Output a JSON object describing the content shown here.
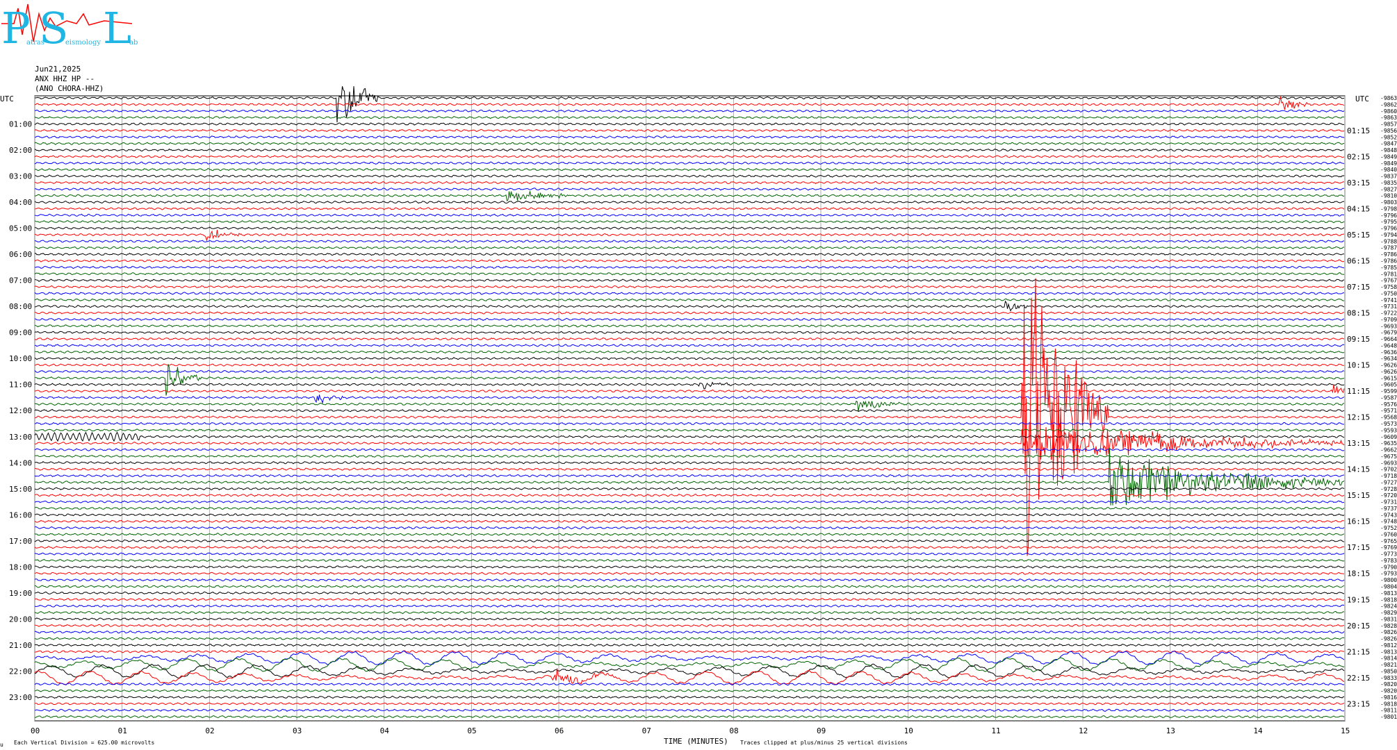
{
  "logo": {
    "big_letters": [
      "P",
      "S",
      "L"
    ],
    "small_words": [
      "atras",
      "eismology",
      "ab"
    ],
    "colors": {
      "letters": "#1fb6e4",
      "wave": "#ff0000"
    }
  },
  "header": {
    "date": "Jun21,2025",
    "station": "ANX HHZ HP --",
    "location": "(ANO CHORA-HHZ)"
  },
  "utc_left": "UTC",
  "utc_right": "UTC",
  "footer": {
    "vertical_division": "Each Vertical Division =  625.00 microvolts",
    "xlabel": "TIME (MINUTES)",
    "clip_note": "Traces clipped at plus/minus 25 vertical divisions",
    "corner_mark": "u"
  },
  "chart_data": {
    "type": "line",
    "xlabel": "TIME (MINUTES)",
    "x_ticks": [
      "00",
      "01",
      "02",
      "03",
      "04",
      "05",
      "06",
      "07",
      "08",
      "09",
      "10",
      "11",
      "12",
      "13",
      "14",
      "15"
    ],
    "xlim": [
      0,
      15
    ],
    "trace_minutes": 15,
    "traces_per_hour": 4,
    "trace_colors": [
      "#000000",
      "#ff0000",
      "#0000ff",
      "#006400"
    ],
    "left_hour_labels": [
      "01:00",
      "02:00",
      "03:00",
      "04:00",
      "05:00",
      "06:00",
      "07:00",
      "08:00",
      "09:00",
      "10:00",
      "11:00",
      "12:00",
      "13:00",
      "14:00",
      "15:00",
      "16:00",
      "17:00",
      "18:00",
      "19:00",
      "20:00",
      "21:00",
      "22:00",
      "23:00"
    ],
    "right_hour_labels": [
      "01:15",
      "02:15",
      "03:15",
      "04:15",
      "05:15",
      "06:15",
      "07:15",
      "08:15",
      "09:15",
      "10:15",
      "11:15",
      "12:15",
      "13:15",
      "14:15",
      "15:15",
      "16:15",
      "17:15",
      "18:15",
      "19:15",
      "20:15",
      "21:15",
      "22:15",
      "23:15"
    ],
    "trace_offsets": [
      "-9863",
      "-9862",
      "-9860",
      "-9863",
      "-9857",
      "-9856",
      "-9852",
      "-9847",
      "-9848",
      "-9849",
      "-9849",
      "-9840",
      "-9837",
      "-9835",
      "-9827",
      "-9810",
      "-9803",
      "-9798",
      "-9796",
      "-9795",
      "-9796",
      "-9794",
      "-9788",
      "-9787",
      "-9786",
      "-9786",
      "-9785",
      "-9781",
      "-9767",
      "-9758",
      "-9750",
      "-9741",
      "-9731",
      "-9722",
      "-9709",
      "-9693",
      "-9679",
      "-9664",
      "-9648",
      "-9636",
      "-9634",
      "-9626",
      "-9626",
      "-9615",
      "-9605",
      "-9599",
      "-9587",
      "-9576",
      "-9571",
      "-9568",
      "-9573",
      "-9593",
      "-9609",
      "-9635",
      "-9662",
      "-9675",
      "-9693",
      "-9702",
      "-9718",
      "-9727",
      "-9728",
      "-9720",
      "-9731",
      "-9737",
      "-9743",
      "-9748",
      "-9752",
      "-9760",
      "-9765",
      "-9769",
      "-9773",
      "-9783",
      "-9790",
      "-9793",
      "-9800",
      "-9804",
      "-9813",
      "-9818",
      "-9824",
      "-9829",
      "-9831",
      "-9828",
      "-9826",
      "-9826",
      "-9812",
      "-9813",
      "-9814",
      "-9821",
      "-9850",
      "-9833",
      "-9820",
      "-9820",
      "-9816",
      "-9818",
      "-9811",
      "-9801"
    ],
    "events": [
      {
        "row": 0,
        "minute": 3.45,
        "duration": 0.5,
        "amplitude": 5,
        "label": "event"
      },
      {
        "row": 1,
        "minute": 14.25,
        "duration": 0.35,
        "amplitude": 1.2
      },
      {
        "row": 15,
        "minute": 5.4,
        "duration": 0.8,
        "amplitude": 1
      },
      {
        "row": 21,
        "minute": 1.95,
        "duration": 0.4,
        "amplitude": 1
      },
      {
        "row": 32,
        "minute": 11.1,
        "duration": 0.3,
        "amplitude": 1.3
      },
      {
        "row": 43,
        "minute": 1.5,
        "duration": 0.4,
        "amplitude": 2.5
      },
      {
        "row": 44,
        "minute": 7.6,
        "duration": 0.4,
        "amplitude": 1.2
      },
      {
        "row": 45,
        "minute": 14.85,
        "duration": 0.2,
        "amplitude": 1.5
      },
      {
        "row": 46,
        "minute": 3.2,
        "duration": 0.4,
        "amplitude": 1
      },
      {
        "row": 47,
        "minute": 9.4,
        "duration": 0.6,
        "amplitude": 1
      },
      {
        "row": 49,
        "minute": 11.3,
        "duration": 1.0,
        "amplitude": 28,
        "label": "large-event"
      },
      {
        "row": 53,
        "minute": 11.3,
        "duration": 3.7,
        "amplitude": 3,
        "label": "coda"
      },
      {
        "row": 59,
        "minute": 12.3,
        "duration": 2.7,
        "amplitude": 4,
        "label": "coda"
      },
      {
        "row": 89,
        "minute": 5.9,
        "duration": 0.8,
        "amplitude": 1.5
      }
    ],
    "microseism_rows": [
      86,
      87,
      88,
      89
    ],
    "microseism_minute_range": [
      0,
      15
    ],
    "vertical_division_microvolts": 625.0,
    "clip_divisions": 25
  }
}
